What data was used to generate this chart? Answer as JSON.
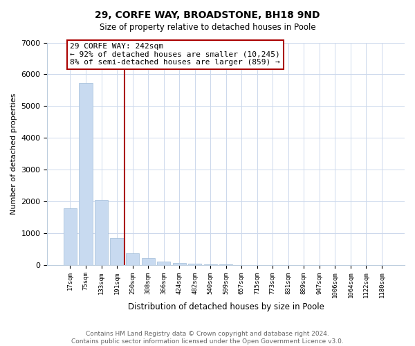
{
  "title": "29, CORFE WAY, BROADSTONE, BH18 9ND",
  "subtitle": "Size of property relative to detached houses in Poole",
  "xlabel": "Distribution of detached houses by size in Poole",
  "ylabel": "Number of detached properties",
  "bar_labels": [
    "17sqm",
    "75sqm",
    "133sqm",
    "191sqm",
    "250sqm",
    "308sqm",
    "366sqm",
    "424sqm",
    "482sqm",
    "540sqm",
    "599sqm",
    "657sqm",
    "715sqm",
    "773sqm",
    "831sqm",
    "889sqm",
    "947sqm",
    "1006sqm",
    "1064sqm",
    "1122sqm",
    "1180sqm"
  ],
  "bar_values": [
    1770,
    5730,
    2050,
    840,
    355,
    205,
    95,
    55,
    35,
    10,
    5,
    2,
    1,
    0,
    0,
    0,
    0,
    0,
    0,
    0,
    0
  ],
  "bar_color": "#c8daf0",
  "bar_edge_color": "#a0bcd8",
  "property_line_color": "#aa0000",
  "annotation_text": "29 CORFE WAY: 242sqm\n← 92% of detached houses are smaller (10,245)\n8% of semi-detached houses are larger (859) →",
  "annotation_box_color": "#ffffff",
  "annotation_box_edge_color": "#aa0000",
  "ylim": [
    0,
    7000
  ],
  "yticks": [
    0,
    1000,
    2000,
    3000,
    4000,
    5000,
    6000,
    7000
  ],
  "footer_text": "Contains HM Land Registry data © Crown copyright and database right 2024.\nContains public sector information licensed under the Open Government Licence v3.0.",
  "background_color": "#ffffff",
  "grid_color": "#ccd8ec"
}
